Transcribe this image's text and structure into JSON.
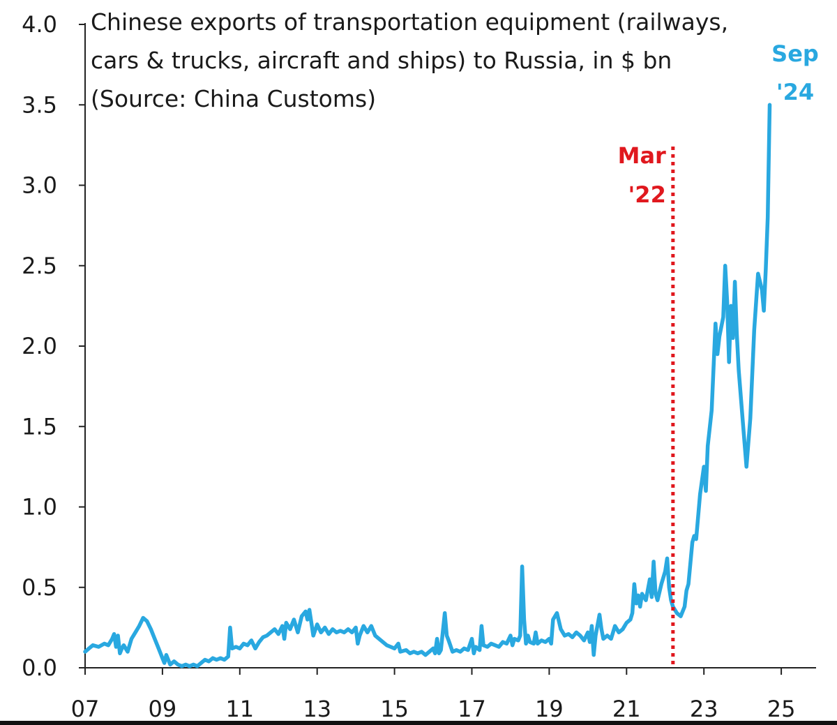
{
  "chart_data": {
    "type": "line",
    "title": "Chinese exports of transportation equipment (railways,\ncars & trucks, aircraft and ships) to Russia, in $ bn\n(Source: China Customs)",
    "xlabel": "",
    "ylabel": "",
    "xlim": [
      2007.0,
      2025.9
    ],
    "ylim": [
      0.0,
      4.0
    ],
    "x_ticks": [
      2007,
      2009,
      2011,
      2013,
      2015,
      2017,
      2019,
      2021,
      2023,
      2025
    ],
    "x_tick_labels": [
      "07",
      "09",
      "11",
      "13",
      "15",
      "17",
      "19",
      "21",
      "23",
      "25"
    ],
    "y_ticks": [
      0.0,
      0.5,
      1.0,
      1.5,
      2.0,
      2.5,
      3.0,
      3.5,
      4.0
    ],
    "y_tick_labels": [
      "0.0",
      "0.5",
      "1.0",
      "1.5",
      "2.0",
      "2.5",
      "3.0",
      "3.5",
      "4.0"
    ],
    "grid": false,
    "series": [
      {
        "color": "#29a8e0",
        "points": [
          [
            2007.0,
            0.1
          ],
          [
            2007.1,
            0.12
          ],
          [
            2007.2,
            0.14
          ],
          [
            2007.35,
            0.13
          ],
          [
            2007.5,
            0.15
          ],
          [
            2007.6,
            0.14
          ],
          [
            2007.7,
            0.18
          ],
          [
            2007.75,
            0.21
          ],
          [
            2007.8,
            0.13
          ],
          [
            2007.85,
            0.2
          ],
          [
            2007.9,
            0.09
          ],
          [
            2007.95,
            0.12
          ],
          [
            2008.0,
            0.14
          ],
          [
            2008.1,
            0.1
          ],
          [
            2008.2,
            0.18
          ],
          [
            2008.3,
            0.22
          ],
          [
            2008.4,
            0.26
          ],
          [
            2008.5,
            0.31
          ],
          [
            2008.6,
            0.29
          ],
          [
            2008.7,
            0.24
          ],
          [
            2008.8,
            0.18
          ],
          [
            2008.9,
            0.12
          ],
          [
            2009.0,
            0.06
          ],
          [
            2009.05,
            0.03
          ],
          [
            2009.1,
            0.08
          ],
          [
            2009.2,
            0.02
          ],
          [
            2009.3,
            0.04
          ],
          [
            2009.4,
            0.02
          ],
          [
            2009.5,
            0.01
          ],
          [
            2009.6,
            0.02
          ],
          [
            2009.7,
            0.01
          ],
          [
            2009.8,
            0.02
          ],
          [
            2009.9,
            0.01
          ],
          [
            2010.0,
            0.03
          ],
          [
            2010.1,
            0.05
          ],
          [
            2010.2,
            0.04
          ],
          [
            2010.3,
            0.06
          ],
          [
            2010.4,
            0.05
          ],
          [
            2010.5,
            0.06
          ],
          [
            2010.6,
            0.05
          ],
          [
            2010.7,
            0.07
          ],
          [
            2010.75,
            0.25
          ],
          [
            2010.8,
            0.12
          ],
          [
            2010.9,
            0.13
          ],
          [
            2011.0,
            0.12
          ],
          [
            2011.1,
            0.15
          ],
          [
            2011.2,
            0.14
          ],
          [
            2011.3,
            0.17
          ],
          [
            2011.4,
            0.12
          ],
          [
            2011.5,
            0.16
          ],
          [
            2011.6,
            0.19
          ],
          [
            2011.7,
            0.2
          ],
          [
            2011.8,
            0.22
          ],
          [
            2011.9,
            0.24
          ],
          [
            2012.0,
            0.21
          ],
          [
            2012.1,
            0.26
          ],
          [
            2012.15,
            0.18
          ],
          [
            2012.2,
            0.28
          ],
          [
            2012.3,
            0.24
          ],
          [
            2012.4,
            0.3
          ],
          [
            2012.5,
            0.22
          ],
          [
            2012.6,
            0.32
          ],
          [
            2012.7,
            0.35
          ],
          [
            2012.75,
            0.3
          ],
          [
            2012.8,
            0.36
          ],
          [
            2012.9,
            0.2
          ],
          [
            2013.0,
            0.27
          ],
          [
            2013.1,
            0.22
          ],
          [
            2013.2,
            0.25
          ],
          [
            2013.3,
            0.21
          ],
          [
            2013.4,
            0.24
          ],
          [
            2013.5,
            0.22
          ],
          [
            2013.6,
            0.23
          ],
          [
            2013.7,
            0.22
          ],
          [
            2013.8,
            0.24
          ],
          [
            2013.9,
            0.22
          ],
          [
            2014.0,
            0.25
          ],
          [
            2014.05,
            0.15
          ],
          [
            2014.1,
            0.2
          ],
          [
            2014.2,
            0.26
          ],
          [
            2014.3,
            0.22
          ],
          [
            2014.4,
            0.26
          ],
          [
            2014.5,
            0.2
          ],
          [
            2014.6,
            0.18
          ],
          [
            2014.7,
            0.16
          ],
          [
            2014.8,
            0.14
          ],
          [
            2014.9,
            0.13
          ],
          [
            2015.0,
            0.12
          ],
          [
            2015.1,
            0.15
          ],
          [
            2015.15,
            0.1
          ],
          [
            2015.3,
            0.11
          ],
          [
            2015.4,
            0.09
          ],
          [
            2015.5,
            0.1
          ],
          [
            2015.6,
            0.09
          ],
          [
            2015.7,
            0.1
          ],
          [
            2015.8,
            0.08
          ],
          [
            2015.9,
            0.1
          ],
          [
            2016.0,
            0.12
          ],
          [
            2016.05,
            0.09
          ],
          [
            2016.1,
            0.18
          ],
          [
            2016.15,
            0.09
          ],
          [
            2016.2,
            0.11
          ],
          [
            2016.3,
            0.34
          ],
          [
            2016.35,
            0.2
          ],
          [
            2016.4,
            0.17
          ],
          [
            2016.5,
            0.1
          ],
          [
            2016.6,
            0.11
          ],
          [
            2016.7,
            0.1
          ],
          [
            2016.8,
            0.12
          ],
          [
            2016.9,
            0.11
          ],
          [
            2017.0,
            0.18
          ],
          [
            2017.05,
            0.09
          ],
          [
            2017.1,
            0.13
          ],
          [
            2017.2,
            0.11
          ],
          [
            2017.25,
            0.26
          ],
          [
            2017.3,
            0.14
          ],
          [
            2017.4,
            0.13
          ],
          [
            2017.5,
            0.15
          ],
          [
            2017.6,
            0.14
          ],
          [
            2017.7,
            0.13
          ],
          [
            2017.8,
            0.16
          ],
          [
            2017.9,
            0.15
          ],
          [
            2018.0,
            0.2
          ],
          [
            2018.05,
            0.14
          ],
          [
            2018.1,
            0.18
          ],
          [
            2018.2,
            0.17
          ],
          [
            2018.25,
            0.2
          ],
          [
            2018.3,
            0.63
          ],
          [
            2018.35,
            0.3
          ],
          [
            2018.4,
            0.15
          ],
          [
            2018.45,
            0.2
          ],
          [
            2018.5,
            0.16
          ],
          [
            2018.6,
            0.15
          ],
          [
            2018.65,
            0.22
          ],
          [
            2018.7,
            0.15
          ],
          [
            2018.8,
            0.17
          ],
          [
            2018.9,
            0.16
          ],
          [
            2019.0,
            0.18
          ],
          [
            2019.05,
            0.15
          ],
          [
            2019.1,
            0.3
          ],
          [
            2019.2,
            0.34
          ],
          [
            2019.3,
            0.24
          ],
          [
            2019.4,
            0.2
          ],
          [
            2019.5,
            0.21
          ],
          [
            2019.6,
            0.19
          ],
          [
            2019.7,
            0.22
          ],
          [
            2019.8,
            0.2
          ],
          [
            2019.9,
            0.17
          ],
          [
            2020.0,
            0.22
          ],
          [
            2020.05,
            0.16
          ],
          [
            2020.1,
            0.26
          ],
          [
            2020.15,
            0.08
          ],
          [
            2020.2,
            0.2
          ],
          [
            2020.3,
            0.33
          ],
          [
            2020.35,
            0.24
          ],
          [
            2020.4,
            0.18
          ],
          [
            2020.5,
            0.2
          ],
          [
            2020.6,
            0.18
          ],
          [
            2020.7,
            0.26
          ],
          [
            2020.8,
            0.22
          ],
          [
            2020.9,
            0.24
          ],
          [
            2021.0,
            0.28
          ],
          [
            2021.1,
            0.3
          ],
          [
            2021.15,
            0.34
          ],
          [
            2021.2,
            0.52
          ],
          [
            2021.25,
            0.4
          ],
          [
            2021.3,
            0.45
          ],
          [
            2021.35,
            0.38
          ],
          [
            2021.4,
            0.46
          ],
          [
            2021.5,
            0.42
          ],
          [
            2021.6,
            0.55
          ],
          [
            2021.65,
            0.44
          ],
          [
            2021.7,
            0.66
          ],
          [
            2021.75,
            0.46
          ],
          [
            2021.8,
            0.42
          ],
          [
            2021.9,
            0.52
          ],
          [
            2022.0,
            0.6
          ],
          [
            2022.05,
            0.68
          ],
          [
            2022.1,
            0.5
          ],
          [
            2022.15,
            0.42
          ],
          [
            2022.2,
            0.38
          ],
          [
            2022.3,
            0.34
          ],
          [
            2022.4,
            0.32
          ],
          [
            2022.5,
            0.38
          ],
          [
            2022.55,
            0.48
          ],
          [
            2022.6,
            0.52
          ],
          [
            2022.65,
            0.65
          ],
          [
            2022.7,
            0.78
          ],
          [
            2022.75,
            0.82
          ],
          [
            2022.8,
            0.8
          ],
          [
            2022.9,
            1.08
          ],
          [
            2023.0,
            1.25
          ],
          [
            2023.05,
            1.1
          ],
          [
            2023.1,
            1.38
          ],
          [
            2023.2,
            1.6
          ],
          [
            2023.3,
            2.14
          ],
          [
            2023.35,
            1.95
          ],
          [
            2023.4,
            2.06
          ],
          [
            2023.5,
            2.18
          ],
          [
            2023.55,
            2.5
          ],
          [
            2023.6,
            2.28
          ],
          [
            2023.65,
            1.9
          ],
          [
            2023.7,
            2.25
          ],
          [
            2023.75,
            2.05
          ],
          [
            2023.8,
            2.4
          ],
          [
            2023.85,
            2.08
          ],
          [
            2023.9,
            1.85
          ],
          [
            2024.0,
            1.55
          ],
          [
            2024.1,
            1.25
          ],
          [
            2024.2,
            1.55
          ],
          [
            2024.3,
            2.1
          ],
          [
            2024.4,
            2.45
          ],
          [
            2024.5,
            2.35
          ],
          [
            2024.55,
            2.22
          ],
          [
            2024.6,
            2.48
          ],
          [
            2024.65,
            2.8
          ],
          [
            2024.7,
            3.5
          ]
        ]
      }
    ],
    "annotations": [
      {
        "label_lines": [
          "Mar",
          "'22"
        ],
        "x": 2022.2,
        "color": "#e0181e",
        "style": "dotted vertical line"
      },
      {
        "label_lines": [
          "Sep",
          "'24"
        ],
        "x": 2024.7,
        "y": 3.5,
        "color": "#29a8e0"
      }
    ]
  }
}
